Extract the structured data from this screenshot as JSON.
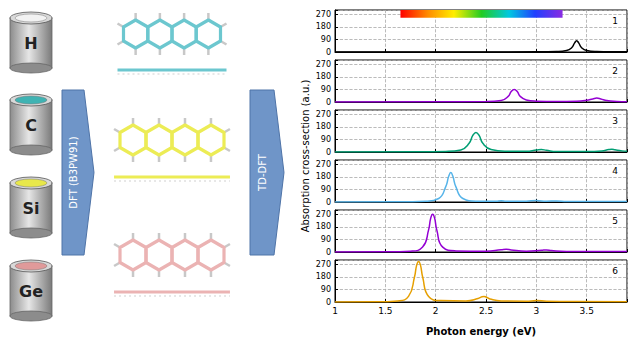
{
  "diagram": {
    "elements": [
      "H",
      "C",
      "Si",
      "Ge"
    ],
    "methods": [
      "DFT (B3PW91)",
      "TD-DFT"
    ]
  },
  "chart_data": [
    {
      "type": "line",
      "title": "1",
      "color": "#000000",
      "x": [
        1,
        2,
        3,
        3.2,
        3.3,
        3.35,
        3.38,
        3.4,
        3.42,
        3.45,
        3.5,
        3.6,
        3.7,
        3.9
      ],
      "values": [
        0,
        0,
        1,
        3,
        10,
        30,
        65,
        80,
        65,
        30,
        10,
        3,
        2,
        1
      ],
      "xlim": [
        1,
        3.9
      ],
      "xticks": [
        1,
        1.5,
        2,
        2.5,
        3,
        3.5
      ],
      "ylim": [
        0,
        300
      ],
      "yticks": [
        0,
        90,
        180,
        270
      ],
      "grid": true,
      "tick_labels": "y",
      "visible_band": {
        "x": [
          1.65,
          3.26
        ],
        "y": [
          245,
          300
        ]
      }
    },
    {
      "type": "line",
      "title": "2",
      "color": "#9400d3",
      "x": [
        1,
        2,
        2.5,
        2.65,
        2.72,
        2.75,
        2.78,
        2.81,
        2.84,
        2.9,
        3.0,
        3.2,
        3.4,
        3.5,
        3.56,
        3.6,
        3.64,
        3.7,
        3.8,
        3.9
      ],
      "values": [
        0,
        1,
        3,
        10,
        40,
        75,
        90,
        75,
        40,
        15,
        6,
        3,
        5,
        12,
        22,
        28,
        22,
        10,
        4,
        2
      ],
      "xlim": [
        1,
        3.9
      ],
      "xticks": [
        1,
        1.5,
        2,
        2.5,
        3,
        3.5
      ],
      "ylim": [
        0,
        300
      ],
      "yticks": [
        0,
        90,
        180,
        270
      ],
      "grid": true,
      "tick_labels": "y"
    },
    {
      "type": "line",
      "title": "3",
      "color": "#009e73",
      "x": [
        1,
        1.8,
        2.1,
        2.25,
        2.33,
        2.37,
        2.4,
        2.43,
        2.47,
        2.55,
        2.7,
        2.9,
        3.0,
        3.05,
        3.1,
        3.2,
        3.5,
        3.65,
        3.72,
        3.75,
        3.78,
        3.85,
        3.9
      ],
      "values": [
        0,
        1,
        4,
        15,
        60,
        120,
        140,
        120,
        60,
        18,
        6,
        5,
        14,
        18,
        12,
        4,
        3,
        8,
        18,
        20,
        16,
        8,
        5
      ],
      "xlim": [
        1,
        3.9
      ],
      "xticks": [
        1,
        1.5,
        2,
        2.5,
        3,
        3.5
      ],
      "ylim": [
        0,
        300
      ],
      "yticks": [
        0,
        90,
        180,
        270
      ],
      "grid": true,
      "tick_labels": "y"
    },
    {
      "type": "line",
      "title": "4",
      "color": "#56b4e9",
      "x": [
        1,
        1.6,
        1.9,
        2.03,
        2.1,
        2.13,
        2.15,
        2.17,
        2.2,
        2.27,
        2.4,
        2.6,
        2.65,
        2.7,
        2.9,
        3.0,
        3.1,
        3.2,
        3.3,
        3.6,
        3.9
      ],
      "values": [
        0,
        1,
        5,
        25,
        110,
        185,
        210,
        185,
        110,
        25,
        6,
        6,
        9,
        5,
        6,
        10,
        6,
        8,
        4,
        3,
        3
      ],
      "xlim": [
        1,
        3.9
      ],
      "xticks": [
        1,
        1.5,
        2,
        2.5,
        3,
        3.5
      ],
      "ylim": [
        0,
        300
      ],
      "yticks": [
        0,
        90,
        180,
        270
      ],
      "grid": true,
      "tick_labels": "y"
    },
    {
      "type": "line",
      "title": "5",
      "color": "#9400d3",
      "x": [
        1,
        1.5,
        1.75,
        1.87,
        1.93,
        1.95,
        1.97,
        1.99,
        2.01,
        2.07,
        2.2,
        2.5,
        2.65,
        2.7,
        2.75,
        2.9,
        3.05,
        3.1,
        3.15,
        3.3,
        3.6,
        3.9
      ],
      "values": [
        0,
        1,
        6,
        35,
        160,
        240,
        270,
        240,
        160,
        35,
        8,
        6,
        16,
        20,
        14,
        6,
        12,
        15,
        10,
        4,
        3,
        3
      ],
      "xlim": [
        1,
        3.9
      ],
      "xticks": [
        1,
        1.5,
        2,
        2.5,
        3,
        3.5
      ],
      "ylim": [
        0,
        300
      ],
      "yticks": [
        0,
        90,
        180,
        270
      ],
      "grid": true,
      "tick_labels": "y"
    },
    {
      "type": "line",
      "title": "6",
      "color": "#e69f00",
      "x": [
        1,
        1.4,
        1.62,
        1.73,
        1.79,
        1.81,
        1.83,
        1.85,
        1.87,
        1.93,
        2.05,
        2.3,
        2.42,
        2.46,
        2.48,
        2.5,
        2.54,
        2.65,
        2.9,
        3.0,
        3.1,
        3.4,
        3.9
      ],
      "values": [
        0,
        1,
        8,
        40,
        180,
        260,
        290,
        260,
        180,
        40,
        10,
        8,
        25,
        38,
        40,
        36,
        22,
        8,
        6,
        10,
        6,
        3,
        2
      ],
      "xlim": [
        1,
        3.9
      ],
      "xticks": [
        1,
        1.5,
        2,
        2.5,
        3,
        3.5
      ],
      "ylim": [
        0,
        300
      ],
      "yticks": [
        0,
        90,
        180,
        270
      ],
      "grid": true,
      "xlabel": "Photon energy (eV)",
      "ylabel": "Absorption cross-section (a.u.)"
    }
  ]
}
